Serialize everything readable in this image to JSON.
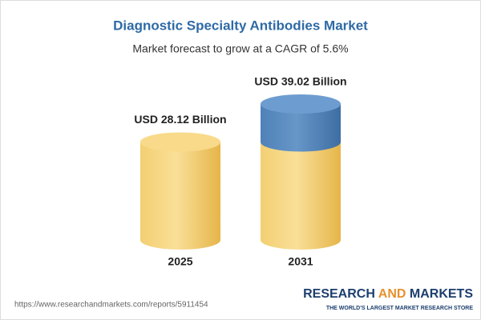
{
  "chart_data": {
    "type": "cylinder",
    "title": "Diagnostic Specialty Antibodies Market",
    "subtitle": "Market forecast to grow at a CAGR of 5.6%",
    "categories": [
      "2025",
      "2031"
    ],
    "values": [
      28.12,
      39.02
    ],
    "value_labels": [
      "USD 28.12 Billion",
      "USD 39.02 Billion"
    ],
    "colors": {
      "base": "#f1c862",
      "growth": "#4f82b8"
    }
  },
  "footer": {
    "url": "https://www.researchandmarkets.com/reports/5911454",
    "logo": [
      "RESEARCH",
      "AND",
      "MARKETS"
    ],
    "tagline": "THE WORLD'S LARGEST MARKET RESEARCH STORE"
  }
}
